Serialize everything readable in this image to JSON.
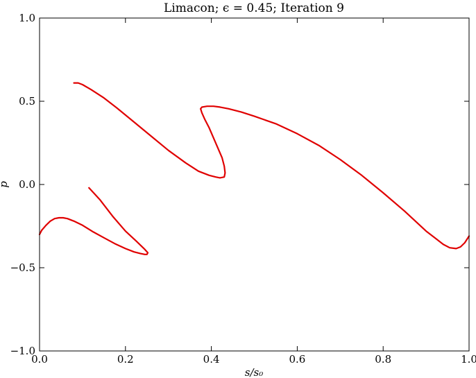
{
  "chart_data": {
    "type": "line",
    "title": "Limacon; ϵ = 0.45; Iteration 9",
    "xlabel": "s/s₀",
    "ylabel": "p",
    "xlim": [
      0.0,
      1.0
    ],
    "ylim": [
      -1.0,
      1.0
    ],
    "xticks": [
      0.0,
      0.2,
      0.4,
      0.6,
      0.8,
      1.0
    ],
    "xtick_labels": [
      "0.0",
      "0.2",
      "0.4",
      "0.6",
      "0.8",
      "1.0"
    ],
    "yticks": [
      -1.0,
      -0.5,
      0.0,
      0.5,
      1.0
    ],
    "ytick_labels": [
      "−1.0",
      "−0.5",
      "0.0",
      "0.5",
      "1.0"
    ],
    "grid": false,
    "series": [
      {
        "color": "#e00000",
        "x": [
          0.115,
          0.14,
          0.17,
          0.2,
          0.225,
          0.245,
          0.252,
          0.25,
          0.245,
          0.235,
          0.22,
          0.2,
          0.175,
          0.15,
          0.125,
          0.1,
          0.08,
          0.065,
          0.055,
          0.045,
          0.035,
          0.025,
          0.015,
          0.005,
          0.0
        ],
        "y": [
          -0.02,
          -0.09,
          -0.19,
          -0.28,
          -0.34,
          -0.39,
          -0.41,
          -0.42,
          -0.42,
          -0.415,
          -0.405,
          -0.385,
          -0.355,
          -0.32,
          -0.285,
          -0.245,
          -0.22,
          -0.205,
          -0.2,
          -0.2,
          -0.205,
          -0.22,
          -0.245,
          -0.275,
          -0.3
        ]
      },
      {
        "color": "#e00000",
        "x": [
          0.08,
          0.09,
          0.1,
          0.12,
          0.15,
          0.18,
          0.22,
          0.26,
          0.3,
          0.34,
          0.37,
          0.395,
          0.41,
          0.42,
          0.43,
          0.432,
          0.43,
          0.425,
          0.415,
          0.405,
          0.395,
          0.385,
          0.378,
          0.375,
          0.378,
          0.39,
          0.405,
          0.42,
          0.44,
          0.47,
          0.5,
          0.55,
          0.6,
          0.65,
          0.7,
          0.75,
          0.8,
          0.85,
          0.9,
          0.92,
          0.94,
          0.955,
          0.97,
          0.98,
          0.99,
          1.0
        ],
        "y": [
          0.61,
          0.61,
          0.6,
          0.57,
          0.52,
          0.46,
          0.375,
          0.29,
          0.205,
          0.13,
          0.08,
          0.055,
          0.045,
          0.04,
          0.045,
          0.07,
          0.11,
          0.16,
          0.22,
          0.28,
          0.34,
          0.39,
          0.43,
          0.455,
          0.465,
          0.47,
          0.47,
          0.465,
          0.455,
          0.435,
          0.41,
          0.365,
          0.305,
          0.235,
          0.15,
          0.055,
          -0.05,
          -0.16,
          -0.28,
          -0.32,
          -0.36,
          -0.38,
          -0.385,
          -0.375,
          -0.35,
          -0.31
        ]
      }
    ]
  }
}
